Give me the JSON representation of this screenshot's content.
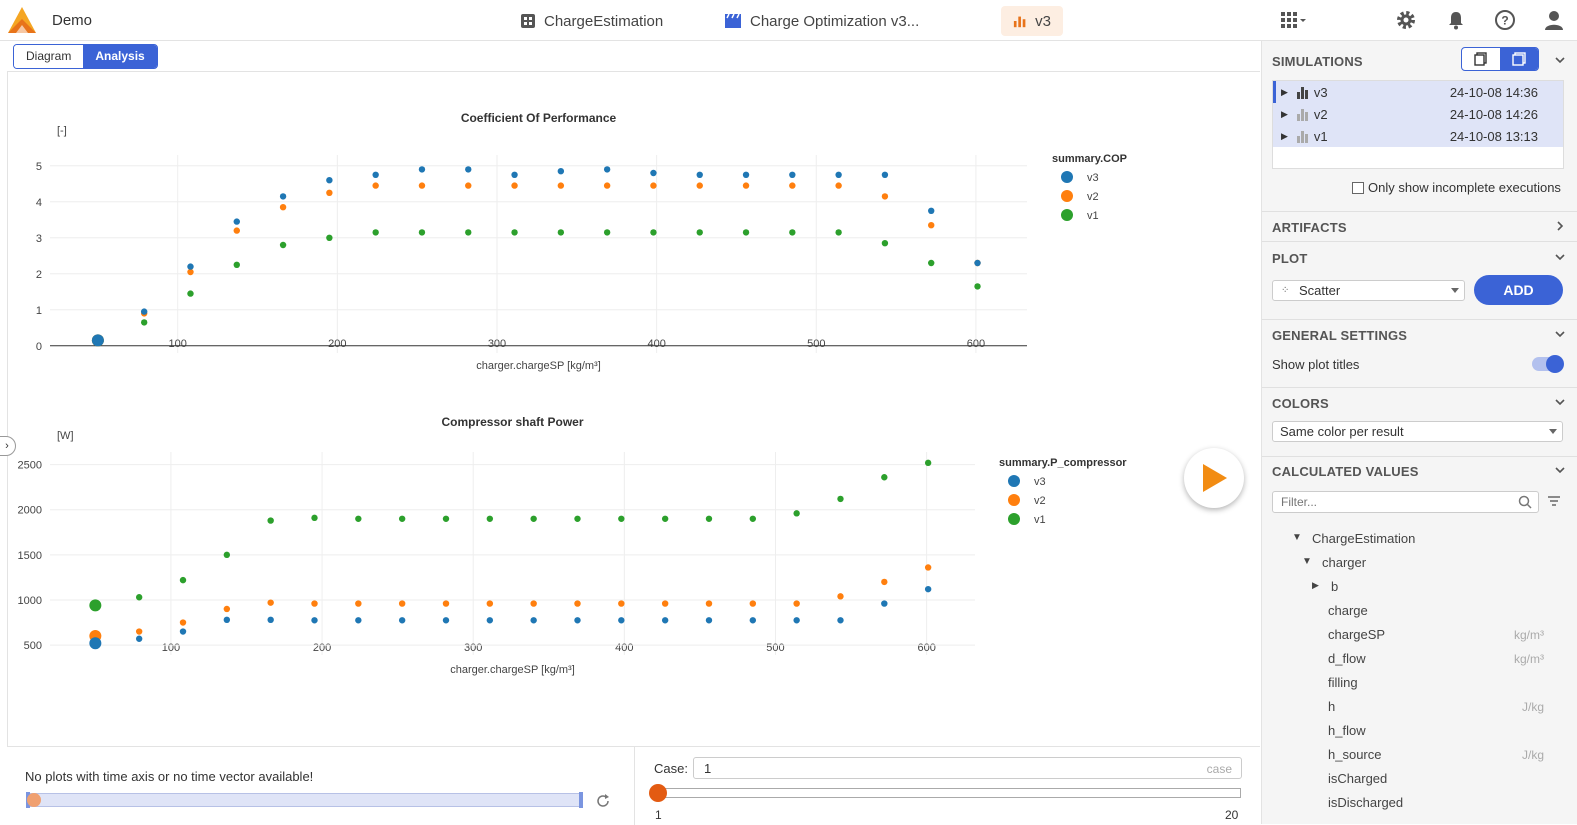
{
  "app": {
    "name": "Demo"
  },
  "top_tabs": [
    {
      "label": "ChargeEstimation",
      "icon": "model-icon"
    },
    {
      "label": "Charge Optimization v3...",
      "icon": "clapper-icon"
    },
    {
      "label": "v3",
      "icon": "bar-chart-icon"
    }
  ],
  "view_tabs": {
    "diagram": "Diagram",
    "analysis": "Analysis"
  },
  "colors": {
    "v3": "#1f77b4",
    "v2": "#ff7f0e",
    "v1": "#2ca02c",
    "accent": "#3b63d6",
    "play": "#f28c13"
  },
  "chart_data": [
    {
      "type": "scatter",
      "title": "Coefficient Of Performance",
      "ylabel": "[-]",
      "xlabel": "charger.chargeSP [kg/m³]",
      "legend_title": "summary.COP",
      "xticks": [
        100,
        200,
        300,
        400,
        500,
        600
      ],
      "yticks": [
        0,
        1,
        2,
        3,
        4,
        5
      ],
      "xlim": [
        20,
        632
      ],
      "ylim": [
        -0.2,
        5.3
      ],
      "x": [
        50,
        79,
        108,
        137,
        166,
        195,
        224,
        253,
        282,
        311,
        340,
        369,
        398,
        427,
        456,
        485,
        514,
        543,
        572,
        601
      ],
      "series": [
        {
          "name": "v3",
          "values": [
            0.15,
            0.95,
            2.2,
            3.45,
            4.15,
            4.6,
            4.75,
            4.9,
            4.9,
            4.75,
            4.85,
            4.9,
            4.8,
            4.75,
            4.75,
            4.75,
            4.75,
            4.75,
            3.75,
            2.3
          ]
        },
        {
          "name": "v2",
          "values": [
            0.15,
            0.9,
            2.05,
            3.2,
            3.85,
            4.25,
            4.45,
            4.45,
            4.45,
            4.45,
            4.45,
            4.45,
            4.45,
            4.45,
            4.45,
            4.45,
            4.45,
            4.15,
            3.35,
            2.3
          ]
        },
        {
          "name": "v1",
          "values": [
            0.15,
            0.65,
            1.45,
            2.25,
            2.8,
            3.0,
            3.15,
            3.15,
            3.15,
            3.15,
            3.15,
            3.15,
            3.15,
            3.15,
            3.15,
            3.15,
            3.15,
            2.85,
            2.3,
            1.65
          ]
        }
      ]
    },
    {
      "type": "scatter",
      "title": "Compressor shaft Power",
      "ylabel": "[W]",
      "xlabel": "charger.chargeSP [kg/m³]",
      "legend_title": "summary.P_compressor",
      "xticks": [
        100,
        200,
        300,
        400,
        500,
        600
      ],
      "yticks": [
        500,
        1000,
        1500,
        2000,
        2500
      ],
      "xlim": [
        20,
        632
      ],
      "ylim": [
        390,
        2640
      ],
      "x": [
        50,
        79,
        108,
        137,
        166,
        195,
        224,
        253,
        282,
        311,
        340,
        369,
        398,
        427,
        456,
        485,
        514,
        543,
        572,
        601
      ],
      "series": [
        {
          "name": "v3",
          "values": [
            520,
            570,
            650,
            780,
            780,
            775,
            775,
            775,
            775,
            775,
            775,
            775,
            775,
            775,
            775,
            775,
            775,
            775,
            960,
            1120
          ]
        },
        {
          "name": "v2",
          "values": [
            600,
            650,
            750,
            900,
            970,
            960,
            960,
            960,
            960,
            960,
            960,
            960,
            960,
            960,
            960,
            960,
            960,
            1040,
            1200,
            1360
          ]
        },
        {
          "name": "v1",
          "values": [
            940,
            1030,
            1220,
            1500,
            1880,
            1910,
            1900,
            1900,
            1900,
            1900,
            1900,
            1900,
            1900,
            1900,
            1900,
            1900,
            1960,
            2120,
            2360,
            2520
          ]
        }
      ]
    }
  ],
  "bottom": {
    "no_plots_msg": "No plots with time axis or no time vector available!",
    "case_label": "Case:",
    "case_value": "1",
    "case_unit": "case",
    "slider_min": "1",
    "slider_max": "20",
    "slider_level": 0.0
  },
  "right": {
    "simulations_title": "SIMULATIONS",
    "simulations": [
      {
        "name": "v3",
        "date": "24-10-08 14:36"
      },
      {
        "name": "v2",
        "date": "24-10-08 14:26"
      },
      {
        "name": "v1",
        "date": "24-10-08 13:13"
      }
    ],
    "incomplete_label": "Only show incomplete executions",
    "artifacts_title": "ARTIFACTS",
    "plot_title": "PLOT",
    "plot_type": "Scatter",
    "add_label": "ADD",
    "general_title": "GENERAL SETTINGS",
    "show_titles_label": "Show plot titles",
    "colors_title": "COLORS",
    "colors_value": "Same color per result",
    "calc_title": "CALCULATED VALUES",
    "filter_placeholder": "Filter...",
    "tree": [
      {
        "label": "ChargeEstimation",
        "unit": ""
      },
      {
        "label": "charger",
        "unit": ""
      },
      {
        "label": "b",
        "unit": ""
      },
      {
        "label": "charge",
        "unit": ""
      },
      {
        "label": "chargeSP",
        "unit": "kg/m³"
      },
      {
        "label": "d_flow",
        "unit": "kg/m³"
      },
      {
        "label": "filling",
        "unit": ""
      },
      {
        "label": "h",
        "unit": "J/kg"
      },
      {
        "label": "h_flow",
        "unit": ""
      },
      {
        "label": "h_source",
        "unit": "J/kg"
      },
      {
        "label": "isCharged",
        "unit": ""
      },
      {
        "label": "isDischarged",
        "unit": ""
      }
    ]
  }
}
